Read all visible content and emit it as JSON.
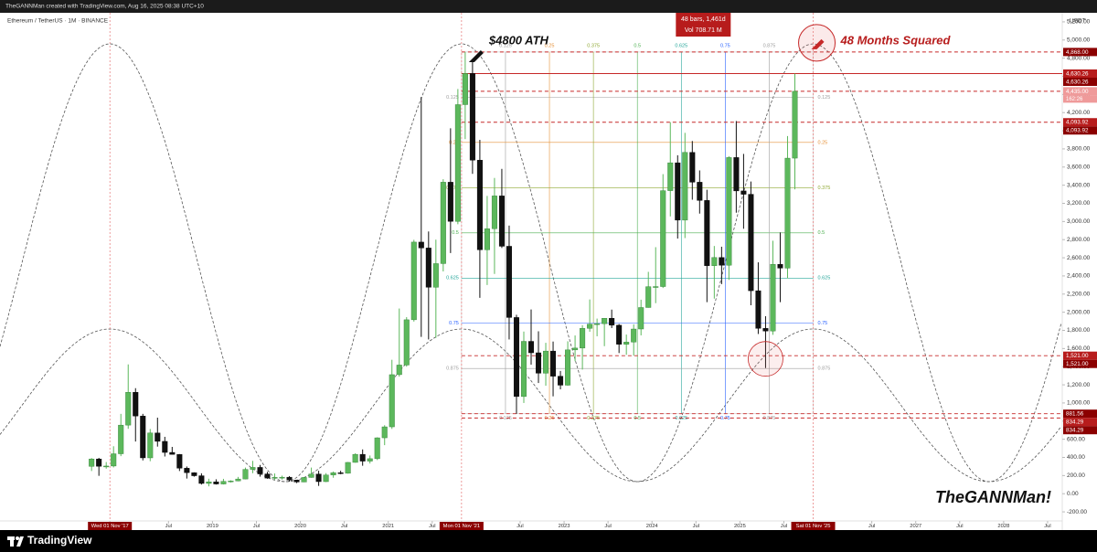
{
  "header": {
    "created": "TheGANNMan created with TradingView.com, Aug 16, 2025 08:38 UTC+10",
    "symbol": "Ethereum / TetherUS · 1M · BINANCE",
    "currency": "USDT"
  },
  "chart_data": {
    "type": "candlestick",
    "up_color": "#5cb85c",
    "down_color": "#111111",
    "grid": false,
    "xlim": [
      "2016-08",
      "2028-09"
    ],
    "xticks": [
      {
        "value": "2017-11",
        "label": "Wed 01 Nov '17",
        "highlight": true
      },
      {
        "value": "2018-07",
        "label": "Jul"
      },
      {
        "value": "2019-01",
        "label": "2019"
      },
      {
        "value": "2019-07",
        "label": "Jul"
      },
      {
        "value": "2020-01",
        "label": "2020"
      },
      {
        "value": "2020-07",
        "label": "Jul"
      },
      {
        "value": "2021-01",
        "label": "2021"
      },
      {
        "value": "2021-07",
        "label": "Jul"
      },
      {
        "value": "2021-11",
        "label": "Mon 01 Nov '21",
        "highlight": true
      },
      {
        "value": "2022-07",
        "label": "Jul"
      },
      {
        "value": "2023-01",
        "label": "2023"
      },
      {
        "value": "2023-07",
        "label": "Jul"
      },
      {
        "value": "2024-01",
        "label": "2024"
      },
      {
        "value": "2024-07",
        "label": "Jul"
      },
      {
        "value": "2025-01",
        "label": "2025"
      },
      {
        "value": "2025-07",
        "label": "Jul"
      },
      {
        "value": "2025-11",
        "label": "Sat 01 Nov '25",
        "highlight": true
      },
      {
        "value": "2026-07",
        "label": "Jul"
      },
      {
        "value": "2027-01",
        "label": "2027"
      },
      {
        "value": "2027-07",
        "label": "Jul"
      },
      {
        "value": "2028-01",
        "label": "2028"
      },
      {
        "value": "2028-07",
        "label": "Jul"
      }
    ],
    "ylim": [
      -300,
      5300
    ],
    "yticks": [
      {
        "value": -200,
        "label": "-200.00"
      },
      {
        "value": 0,
        "label": "0.00"
      },
      {
        "value": 200,
        "label": "200.00"
      },
      {
        "value": 400,
        "label": "400.00"
      },
      {
        "value": 600,
        "label": "600.00"
      },
      {
        "value": 800,
        "label": "800.00"
      },
      {
        "value": 1000,
        "label": "1,000.00"
      },
      {
        "value": 1200,
        "label": "1,200.00"
      },
      {
        "value": 1400,
        "label": "1,400.00"
      },
      {
        "value": 1600,
        "label": "1,600.00"
      },
      {
        "value": 1800,
        "label": "1,800.00"
      },
      {
        "value": 2000,
        "label": "2,000.00"
      },
      {
        "value": 2200,
        "label": "2,200.00"
      },
      {
        "value": 2400,
        "label": "2,400.00"
      },
      {
        "value": 2600,
        "label": "2,600.00"
      },
      {
        "value": 2800,
        "label": "2,800.00"
      },
      {
        "value": 3000,
        "label": "3,000.00"
      },
      {
        "value": 3200,
        "label": "3,200.00"
      },
      {
        "value": 3400,
        "label": "3,400.00"
      },
      {
        "value": 3600,
        "label": "3,600.00"
      },
      {
        "value": 3800,
        "label": "3,800.00"
      },
      {
        "value": 4000,
        "label": "4,000.00"
      },
      {
        "value": 4200,
        "label": "4,200.00"
      },
      {
        "value": 4400,
        "label": "4,400.00"
      },
      {
        "value": 4600,
        "label": "4,600.00"
      },
      {
        "value": 4800,
        "label": "4,800.00"
      },
      {
        "value": 5000,
        "label": "5,000.00"
      },
      {
        "value": 5200,
        "label": "5,200.00"
      }
    ],
    "x": [
      "2017-08",
      "2017-09",
      "2017-10",
      "2017-11",
      "2017-12",
      "2018-01",
      "2018-02",
      "2018-03",
      "2018-04",
      "2018-05",
      "2018-06",
      "2018-07",
      "2018-08",
      "2018-09",
      "2018-10",
      "2018-11",
      "2018-12",
      "2019-01",
      "2019-02",
      "2019-03",
      "2019-04",
      "2019-05",
      "2019-06",
      "2019-07",
      "2019-08",
      "2019-09",
      "2019-10",
      "2019-11",
      "2019-12",
      "2020-01",
      "2020-02",
      "2020-03",
      "2020-04",
      "2020-05",
      "2020-06",
      "2020-07",
      "2020-08",
      "2020-09",
      "2020-10",
      "2020-11",
      "2020-12",
      "2021-01",
      "2021-02",
      "2021-03",
      "2021-04",
      "2021-05",
      "2021-06",
      "2021-07",
      "2021-08",
      "2021-09",
      "2021-10",
      "2021-11",
      "2021-12",
      "2022-01",
      "2022-02",
      "2022-03",
      "2022-04",
      "2022-05",
      "2022-06",
      "2022-07",
      "2022-08",
      "2022-09",
      "2022-10",
      "2022-11",
      "2022-12",
      "2023-01",
      "2023-02",
      "2023-03",
      "2023-04",
      "2023-05",
      "2023-06",
      "2023-07",
      "2023-08",
      "2023-09",
      "2023-10",
      "2023-11",
      "2023-12",
      "2024-01",
      "2024-02",
      "2024-03",
      "2024-04",
      "2024-05",
      "2024-06",
      "2024-07",
      "2024-08",
      "2024-09",
      "2024-10",
      "2024-11",
      "2024-12",
      "2025-01",
      "2025-02",
      "2025-03",
      "2025-04",
      "2025-05",
      "2025-06",
      "2025-07",
      "2025-08"
    ],
    "ohlc": [
      [
        301,
        393,
        250,
        383
      ],
      [
        383,
        395,
        197,
        302
      ],
      [
        302,
        349,
        276,
        305
      ],
      [
        305,
        523,
        290,
        440
      ],
      [
        440,
        880,
        414,
        756
      ],
      [
        756,
        1425,
        715,
        1118
      ],
      [
        1118,
        1163,
        575,
        856
      ],
      [
        856,
        880,
        367,
        395
      ],
      [
        395,
        713,
        358,
        670
      ],
      [
        670,
        838,
        519,
        577
      ],
      [
        577,
        627,
        410,
        455
      ],
      [
        455,
        516,
        431,
        433
      ],
      [
        433,
        437,
        250,
        281
      ],
      [
        281,
        300,
        167,
        232
      ],
      [
        232,
        236,
        188,
        198
      ],
      [
        198,
        225,
        101,
        113
      ],
      [
        113,
        165,
        81,
        131
      ],
      [
        131,
        159,
        101,
        107
      ],
      [
        107,
        164,
        102,
        136
      ],
      [
        136,
        148,
        124,
        141
      ],
      [
        141,
        185,
        137,
        162
      ],
      [
        162,
        288,
        159,
        268
      ],
      [
        268,
        362,
        226,
        290
      ],
      [
        290,
        317,
        188,
        218
      ],
      [
        218,
        240,
        165,
        172
      ],
      [
        172,
        223,
        152,
        180
      ],
      [
        180,
        199,
        155,
        182
      ],
      [
        182,
        194,
        133,
        151
      ],
      [
        151,
        153,
        117,
        129
      ],
      [
        129,
        184,
        127,
        179
      ],
      [
        179,
        288,
        176,
        217
      ],
      [
        217,
        253,
        86,
        133
      ],
      [
        133,
        227,
        128,
        206
      ],
      [
        206,
        245,
        176,
        231
      ],
      [
        231,
        253,
        215,
        225
      ],
      [
        225,
        349,
        221,
        345
      ],
      [
        345,
        445,
        342,
        434
      ],
      [
        434,
        488,
        308,
        359
      ],
      [
        359,
        421,
        333,
        386
      ],
      [
        386,
        622,
        371,
        616
      ],
      [
        616,
        755,
        535,
        737
      ],
      [
        737,
        1476,
        714,
        1312
      ],
      [
        1312,
        2041,
        1290,
        1418
      ],
      [
        1418,
        1946,
        1400,
        1917
      ],
      [
        1917,
        2798,
        1897,
        2773
      ],
      [
        2773,
        4372,
        1728,
        2708
      ],
      [
        2708,
        2890,
        1700,
        2275
      ],
      [
        2275,
        2800,
        1718,
        2536
      ],
      [
        2536,
        3466,
        2450,
        3433
      ],
      [
        3433,
        4027,
        2652,
        3001
      ],
      [
        3001,
        4460,
        2970,
        4288
      ],
      [
        4288,
        4868,
        3908,
        4631
      ],
      [
        4631,
        4778,
        3525,
        3676
      ],
      [
        3676,
        3900,
        2159,
        2688
      ],
      [
        2688,
        3282,
        2300,
        2920
      ],
      [
        2920,
        3480,
        2422,
        3282
      ],
      [
        3282,
        3580,
        2708,
        2727
      ],
      [
        2727,
        2955,
        1700,
        1942
      ],
      [
        1942,
        1972,
        881.56,
        1071
      ],
      [
        1071,
        1787,
        1000,
        1679
      ],
      [
        1679,
        2030,
        1422,
        1553
      ],
      [
        1553,
        1790,
        1220,
        1328
      ],
      [
        1328,
        1663,
        1190,
        1572
      ],
      [
        1572,
        1677,
        1073,
        1295
      ],
      [
        1295,
        1353,
        1150,
        1196
      ],
      [
        1196,
        1680,
        1190,
        1585
      ],
      [
        1585,
        1744,
        1460,
        1605
      ],
      [
        1605,
        1857,
        1368,
        1822
      ],
      [
        1822,
        2141,
        1785,
        1869
      ],
      [
        1869,
        1930,
        1735,
        1874
      ],
      [
        1874,
        1935,
        1626,
        1934
      ],
      [
        1934,
        2029,
        1826,
        1857
      ],
      [
        1857,
        1870,
        1550,
        1646
      ],
      [
        1646,
        1754,
        1531,
        1671
      ],
      [
        1671,
        1867,
        1522,
        1815
      ],
      [
        1815,
        2138,
        1745,
        2052
      ],
      [
        2052,
        2445,
        2050,
        2282
      ],
      [
        2282,
        2717,
        2100,
        2283
      ],
      [
        2283,
        3522,
        2267,
        3340
      ],
      [
        3340,
        4093.92,
        3056,
        3647
      ],
      [
        3647,
        3730,
        2812,
        3015
      ],
      [
        3015,
        3977,
        2817,
        3762
      ],
      [
        3762,
        3887,
        3240,
        3433
      ],
      [
        3433,
        3563,
        3087,
        3232
      ],
      [
        3232,
        3350,
        2111,
        2513
      ],
      [
        2513,
        2730,
        2150,
        2603
      ],
      [
        2603,
        2722,
        2310,
        2518
      ],
      [
        2518,
        3720,
        2357,
        3705
      ],
      [
        3705,
        4107,
        3097,
        3337
      ],
      [
        3337,
        3745,
        2920,
        3300
      ],
      [
        3300,
        3440,
        2077,
        2237
      ],
      [
        2237,
        2550,
        1760,
        1822
      ],
      [
        1822,
        1956,
        1385,
        1793
      ],
      [
        1793,
        2788,
        1751,
        2528
      ],
      [
        2528,
        2880,
        2111,
        2486
      ],
      [
        2486,
        3941,
        2373,
        3698
      ],
      [
        3698,
        4630.26,
        3354,
        4435
      ]
    ],
    "levels": [
      {
        "value": 4868,
        "label": "4,868.00",
        "color": "#8b0000"
      },
      {
        "value": 4630.26,
        "label": "4,630.26",
        "color": "#b71c1c"
      },
      {
        "value": 4630.26,
        "label": "4,630.26",
        "color": "#8b0000"
      },
      {
        "value": 4435,
        "label": "4,435.00",
        "color": "#ef9a9a"
      },
      {
        "value": 4093.92,
        "label": "4,093.92",
        "color": "#b71c1c"
      },
      {
        "value": 4093.92,
        "label": "4,093.92",
        "color": "#8b0000"
      },
      {
        "value": 1521,
        "label": "1,521.00",
        "color": "#b71c1c"
      },
      {
        "value": 1521,
        "label": "1,521.00",
        "color": "#8b0000"
      },
      {
        "value": 881.56,
        "label": "881.56",
        "color": "#8b0000"
      },
      {
        "value": 834.29,
        "label": "834.29",
        "color": "#b71c1c"
      },
      {
        "value": 834.29,
        "label": "834.29",
        "color": "#8b0000"
      }
    ],
    "countdown": "162:26",
    "fib_levels": [
      0.125,
      0.25,
      0.375,
      0.5,
      0.625,
      0.75,
      0.875
    ],
    "fib_colors": [
      "#9e9e9e",
      "#e69138",
      "#8fa832",
      "#4caf50",
      "#26a69a",
      "#2962ff",
      "#9e9e9e"
    ],
    "fib_range": {
      "start": "2021-11",
      "end": "2025-11",
      "high": 4868,
      "low": 881.56
    },
    "annotations": {
      "ath": "$4800 ATH",
      "squared": "48 Months Squared",
      "measure": "48 bars, 1,461d",
      "volume": "Vol 708.71 M",
      "author": "TheGANNMan!"
    }
  },
  "footer": {
    "brand": "TradingView"
  }
}
